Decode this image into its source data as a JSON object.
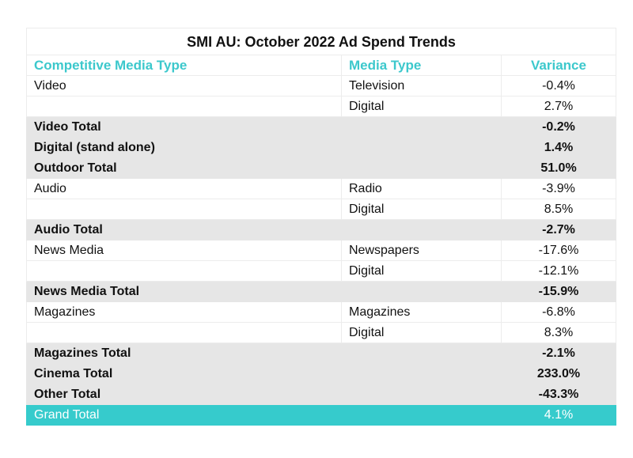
{
  "title": "SMI AU: October 2022 Ad Spend Trends",
  "headers": {
    "competitive_media_type": "Competitive Media Type",
    "media_type": "Media Type",
    "variance": "Variance"
  },
  "rows": [
    {
      "competitive": "Video",
      "media": "Television",
      "variance": "-0.4%",
      "kind": "detail"
    },
    {
      "competitive": "",
      "media": "Digital",
      "variance": "2.7%",
      "kind": "detail"
    },
    {
      "competitive": "Video Total",
      "media": "",
      "variance": "-0.2%",
      "kind": "total"
    },
    {
      "competitive": "Digital (stand alone)",
      "media": "",
      "variance": "1.4%",
      "kind": "total"
    },
    {
      "competitive": "Outdoor Total",
      "media": "",
      "variance": "51.0%",
      "kind": "total"
    },
    {
      "competitive": "Audio",
      "media": "Radio",
      "variance": "-3.9%",
      "kind": "detail"
    },
    {
      "competitive": "",
      "media": "Digital",
      "variance": "8.5%",
      "kind": "detail"
    },
    {
      "competitive": "Audio Total",
      "media": "",
      "variance": "-2.7%",
      "kind": "total"
    },
    {
      "competitive": "News Media",
      "media": "Newspapers",
      "variance": "-17.6%",
      "kind": "detail"
    },
    {
      "competitive": "",
      "media": "Digital",
      "variance": "-12.1%",
      "kind": "detail"
    },
    {
      "competitive": "News Media Total",
      "media": "",
      "variance": "-15.9%",
      "kind": "total"
    },
    {
      "competitive": "Magazines",
      "media": "Magazines",
      "variance": "-6.8%",
      "kind": "detail"
    },
    {
      "competitive": "",
      "media": "Digital",
      "variance": "8.3%",
      "kind": "detail"
    },
    {
      "competitive": "Magazines Total",
      "media": "",
      "variance": "-2.1%",
      "kind": "total"
    },
    {
      "competitive": "Cinema Total",
      "media": "",
      "variance": "233.0%",
      "kind": "total"
    },
    {
      "competitive": "Other Total",
      "media": "",
      "variance": "-43.3%",
      "kind": "total"
    }
  ],
  "grand_total": {
    "label": "Grand Total",
    "variance": "4.1%"
  },
  "colors": {
    "header_text": "#3cc8cc",
    "total_row_bg": "#e6e6e6",
    "grand_total_bg": "#36cbcc",
    "grand_total_text": "#ffffff"
  }
}
